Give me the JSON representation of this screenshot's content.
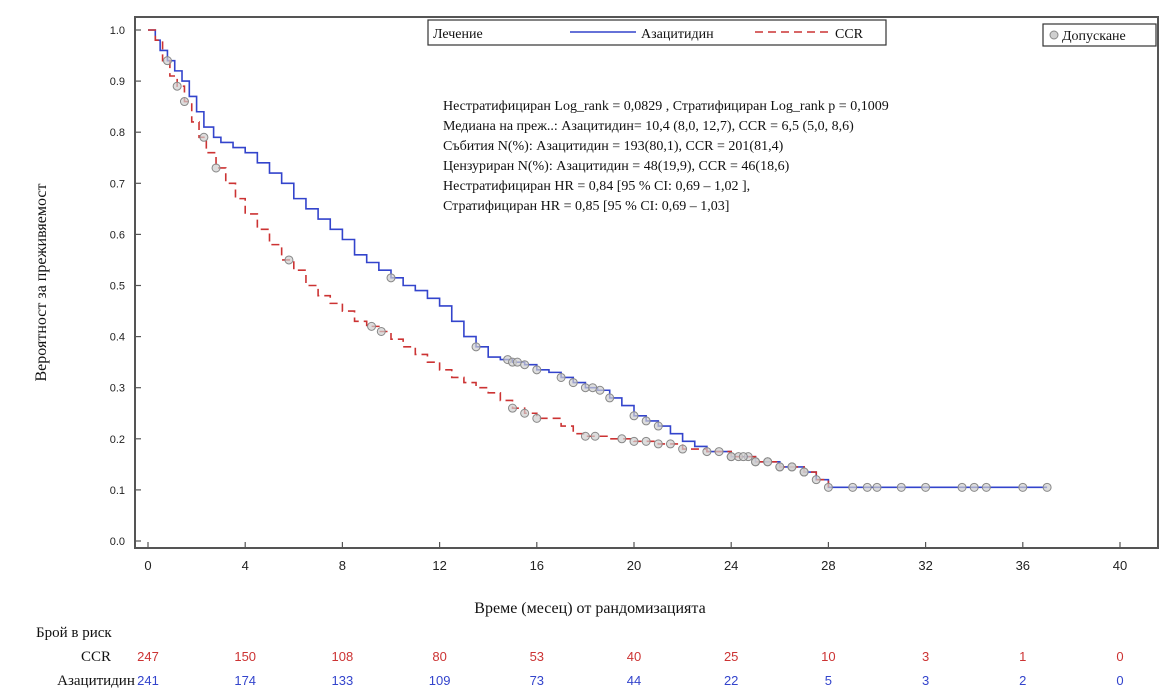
{
  "chart_data": {
    "type": "line",
    "title": "",
    "xlabel": "Време (месец) от рандомизацията",
    "ylabel": "Вероятност за преживяемост",
    "xlim": [
      0,
      41
    ],
    "ylim": [
      -0.01,
      1.02
    ],
    "grid": false,
    "x_ticks": [
      "0",
      "4",
      "8",
      "12",
      "16",
      "20",
      "24",
      "28",
      "32",
      "36",
      "40"
    ],
    "y_ticks": [
      "0.0",
      "0.1",
      "0.2",
      "0.3",
      "0.4",
      "0.5",
      "0.6",
      "0.7",
      "0.8",
      "0.9",
      "1.0"
    ],
    "legend": {
      "title": "Лечение",
      "placement": "top",
      "censor_label": "Допускане"
    },
    "annotation_lines": [
      "Нестратифициран Log_rank = 0,0829 , Стратифициран Log_rank p = 0,1009",
      "Медиана на преж..: Азацитидин= 10,4 (8,0, 12,7), CCR = 6,5 (5,0, 8,6)",
      "Събития N(%): Азацитидин = 193(80,1), CCR = 201(81,4)",
      "Цензуриран N(%): Азацитидин = 48(19,9), CCR = 46(18,6)",
      "Нестратифициран HR = 0,84 [95 % CI: 0,69 – 1,02 ],",
      "Стратифициран HR = 0,85 [95 % CI: 0,69 – 1,03]"
    ],
    "series": [
      {
        "name": "Азацитидин",
        "color": "#3344cc",
        "dash": "solid",
        "steps": [
          [
            0,
            1.0
          ],
          [
            0.3,
            0.98
          ],
          [
            0.5,
            0.96
          ],
          [
            0.8,
            0.94
          ],
          [
            1.1,
            0.92
          ],
          [
            1.4,
            0.9
          ],
          [
            1.7,
            0.87
          ],
          [
            2.0,
            0.84
          ],
          [
            2.3,
            0.81
          ],
          [
            2.7,
            0.79
          ],
          [
            3.0,
            0.78
          ],
          [
            3.5,
            0.77
          ],
          [
            4.0,
            0.76
          ],
          [
            4.5,
            0.74
          ],
          [
            5.0,
            0.72
          ],
          [
            5.5,
            0.7
          ],
          [
            6.0,
            0.67
          ],
          [
            6.5,
            0.65
          ],
          [
            7.0,
            0.63
          ],
          [
            7.5,
            0.61
          ],
          [
            8.0,
            0.59
          ],
          [
            8.5,
            0.56
          ],
          [
            9.0,
            0.545
          ],
          [
            9.5,
            0.53
          ],
          [
            10.0,
            0.515
          ],
          [
            10.5,
            0.5
          ],
          [
            11.0,
            0.49
          ],
          [
            11.5,
            0.475
          ],
          [
            12.0,
            0.46
          ],
          [
            12.5,
            0.43
          ],
          [
            13.0,
            0.4
          ],
          [
            13.5,
            0.38
          ],
          [
            14.0,
            0.36
          ],
          [
            14.5,
            0.355
          ],
          [
            15.0,
            0.35
          ],
          [
            15.5,
            0.345
          ],
          [
            16.0,
            0.335
          ],
          [
            16.5,
            0.33
          ],
          [
            17.0,
            0.32
          ],
          [
            17.5,
            0.31
          ],
          [
            18.0,
            0.3
          ],
          [
            18.5,
            0.295
          ],
          [
            19.0,
            0.28
          ],
          [
            19.5,
            0.265
          ],
          [
            20.0,
            0.245
          ],
          [
            20.5,
            0.235
          ],
          [
            21.0,
            0.225
          ],
          [
            21.5,
            0.21
          ],
          [
            22.0,
            0.195
          ],
          [
            22.5,
            0.185
          ],
          [
            23.0,
            0.175
          ],
          [
            24.0,
            0.165
          ],
          [
            25.0,
            0.155
          ],
          [
            26.0,
            0.145
          ],
          [
            27.0,
            0.135
          ],
          [
            27.5,
            0.12
          ],
          [
            28.0,
            0.105
          ],
          [
            37.0,
            0.105
          ]
        ],
        "censored_x": [
          10.0,
          13.5,
          14.8,
          15.0,
          15.2,
          15.5,
          16.0,
          17.0,
          17.5,
          18.0,
          18.3,
          18.6,
          19.0,
          20.0,
          20.5,
          21.0,
          23.0,
          24.0,
          24.3,
          24.7,
          25.0,
          25.5,
          26.0,
          26.5,
          27.0,
          28.0,
          29.0,
          29.6,
          30.0,
          31.0,
          32.0,
          33.5,
          34.0,
          34.5,
          36.0,
          37.0
        ]
      },
      {
        "name": "CCR",
        "color": "#cc3333",
        "dash": "dashed",
        "steps": [
          [
            0,
            1.0
          ],
          [
            0.3,
            0.98
          ],
          [
            0.6,
            0.94
          ],
          [
            0.9,
            0.91
          ],
          [
            1.2,
            0.89
          ],
          [
            1.5,
            0.86
          ],
          [
            1.8,
            0.82
          ],
          [
            2.1,
            0.79
          ],
          [
            2.4,
            0.76
          ],
          [
            2.8,
            0.73
          ],
          [
            3.2,
            0.7
          ],
          [
            3.6,
            0.67
          ],
          [
            4.0,
            0.64
          ],
          [
            4.5,
            0.61
          ],
          [
            5.0,
            0.58
          ],
          [
            5.5,
            0.55
          ],
          [
            6.0,
            0.53
          ],
          [
            6.5,
            0.5
          ],
          [
            7.0,
            0.48
          ],
          [
            7.5,
            0.465
          ],
          [
            8.0,
            0.45
          ],
          [
            8.5,
            0.43
          ],
          [
            9.0,
            0.42
          ],
          [
            9.5,
            0.41
          ],
          [
            10.0,
            0.395
          ],
          [
            10.5,
            0.38
          ],
          [
            11.0,
            0.365
          ],
          [
            11.5,
            0.35
          ],
          [
            12.0,
            0.335
          ],
          [
            12.5,
            0.32
          ],
          [
            13.0,
            0.31
          ],
          [
            13.5,
            0.3
          ],
          [
            14.0,
            0.29
          ],
          [
            14.5,
            0.275
          ],
          [
            15.0,
            0.26
          ],
          [
            15.5,
            0.25
          ],
          [
            16.0,
            0.24
          ],
          [
            17.0,
            0.225
          ],
          [
            17.5,
            0.21
          ],
          [
            18.0,
            0.205
          ],
          [
            19.0,
            0.2
          ],
          [
            20.0,
            0.195
          ],
          [
            21.0,
            0.19
          ],
          [
            22.0,
            0.18
          ],
          [
            23.0,
            0.175
          ],
          [
            24.0,
            0.165
          ],
          [
            25.0,
            0.155
          ],
          [
            26.0,
            0.145
          ],
          [
            27.0,
            0.135
          ],
          [
            27.5,
            0.12
          ],
          [
            28.0,
            0.105
          ]
        ],
        "censored_x": [
          0.8,
          1.2,
          1.5,
          2.3,
          2.8,
          5.8,
          9.2,
          9.6,
          15.0,
          15.5,
          16.0,
          18.0,
          18.4,
          19.5,
          20.0,
          20.5,
          21.0,
          21.5,
          22.0,
          23.5,
          24.0,
          24.5,
          25.0,
          25.5,
          26.0,
          26.5,
          27.0,
          27.5
        ]
      }
    ]
  },
  "risk_table": {
    "title": "Брой в риск",
    "times": [
      0,
      4,
      8,
      12,
      16,
      20,
      24,
      28,
      32,
      36,
      40
    ],
    "rows": [
      {
        "name": "CCR",
        "color": "#cc3333",
        "values": [
          "247",
          "150",
          "108",
          "80",
          "53",
          "40",
          "25",
          "10",
          "3",
          "1",
          "0"
        ]
      },
      {
        "name": "Азацитидин",
        "color": "#3344cc",
        "values": [
          "241",
          "174",
          "133",
          "109",
          "73",
          "44",
          "22",
          "5",
          "3",
          "2",
          "0"
        ]
      }
    ]
  }
}
